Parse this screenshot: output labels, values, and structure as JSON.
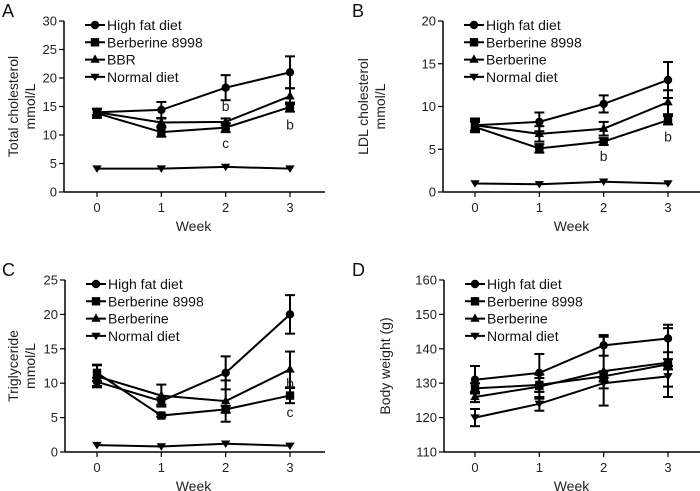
{
  "chart_data": [
    {
      "panel_label": "A",
      "type": "line",
      "xlabel": "Week",
      "ylabel": [
        "Total cholesterol",
        "mmol/L"
      ],
      "x": [
        0,
        1,
        2,
        3
      ],
      "xlim": [
        -0.5,
        3.5
      ],
      "ylim": [
        0,
        30
      ],
      "yticks": [
        0,
        5,
        10,
        15,
        20,
        25,
        30
      ],
      "legend": "top-left",
      "series": [
        {
          "name": "High fat diet",
          "marker": "circle",
          "values": [
            14,
            14.4,
            18.3,
            21
          ],
          "error": [
            0.6,
            1.4,
            2.2,
            2.8
          ]
        },
        {
          "name": "Berberine 8998",
          "marker": "square",
          "values": [
            13.8,
            10.5,
            11.3,
            14.9
          ],
          "error": [
            0.8,
            0.8,
            0.8,
            0.8
          ]
        },
        {
          "name": "BBR",
          "marker": "triangle-up",
          "values": [
            14,
            12.2,
            12.3,
            16.8
          ],
          "error": [
            0.5,
            0.7,
            0.6,
            1.4
          ]
        },
        {
          "name": "Normal diet",
          "marker": "triangle-down",
          "values": [
            4.1,
            4.1,
            4.4,
            4.1
          ],
          "error": [
            0,
            0,
            0,
            0
          ]
        }
      ],
      "annotations": [
        {
          "text": "b",
          "x": 2,
          "y": 15.1
        },
        {
          "text": "c",
          "x": 2,
          "y": 8.6
        },
        {
          "text": "b",
          "x": 3,
          "y": 11.8
        }
      ]
    },
    {
      "panel_label": "B",
      "type": "line",
      "xlabel": "Week",
      "ylabel": [
        "LDL cholesterol",
        "mmol/L"
      ],
      "x": [
        0,
        1,
        2,
        3
      ],
      "xlim": [
        -0.5,
        3.5
      ],
      "ylim": [
        0,
        20
      ],
      "yticks": [
        0,
        5,
        10,
        15,
        20
      ],
      "legend": "top-left",
      "series": [
        {
          "name": "High fat diet",
          "marker": "circle",
          "values": [
            7.8,
            8.2,
            10.3,
            13.1
          ],
          "error": [
            0.8,
            1.1,
            1.0,
            2.1
          ]
        },
        {
          "name": "Berberine 8998",
          "marker": "square",
          "values": [
            7.6,
            5.1,
            5.9,
            8.4
          ],
          "error": [
            0.6,
            0.5,
            0.4,
            0.5
          ]
        },
        {
          "name": "Berberine",
          "marker": "triangle-up",
          "values": [
            7.8,
            6.8,
            7.4,
            10.5
          ],
          "error": [
            0.6,
            0.9,
            0.8,
            1.4
          ]
        },
        {
          "name": "Normal diet",
          "marker": "triangle-down",
          "values": [
            1.0,
            0.9,
            1.2,
            1.0
          ],
          "error": [
            0,
            0,
            0,
            0
          ]
        }
      ],
      "annotations": [
        {
          "text": "b",
          "x": 2,
          "y": 4.2
        },
        {
          "text": "b",
          "x": 3,
          "y": 6.5
        }
      ]
    },
    {
      "panel_label": "C",
      "type": "line",
      "xlabel": "Week",
      "ylabel": [
        "Triglyceride",
        "mmol/L"
      ],
      "x": [
        0,
        1,
        2,
        3
      ],
      "xlim": [
        -0.5,
        3.5
      ],
      "ylim": [
        0,
        25
      ],
      "yticks": [
        0,
        5,
        10,
        15,
        20,
        25
      ],
      "legend": "top-left",
      "series": [
        {
          "name": "High fat diet",
          "marker": "circle",
          "values": [
            10.2,
            7.4,
            11.5,
            20
          ],
          "error": [
            0.6,
            0.5,
            2.4,
            2.8
          ]
        },
        {
          "name": "Berberine 8998",
          "marker": "square",
          "values": [
            11.5,
            5.3,
            6.2,
            8.2
          ],
          "error": [
            1.2,
            0.2,
            0.5,
            1.1
          ]
        },
        {
          "name": "Berberine",
          "marker": "triangle-up",
          "values": [
            11.0,
            8.2,
            7.4,
            12
          ],
          "error": [
            1.6,
            1.6,
            3.0,
            2.6
          ]
        },
        {
          "name": "Normal diet",
          "marker": "triangle-down",
          "values": [
            1.0,
            0.8,
            1.2,
            0.9
          ],
          "error": [
            0,
            0,
            0,
            0
          ]
        }
      ],
      "annotations": [
        {
          "text": "b",
          "x": 3,
          "y": 10
        },
        {
          "text": "c",
          "x": 3,
          "y": 5.8
        }
      ]
    },
    {
      "panel_label": "D",
      "type": "line",
      "xlabel": "Week",
      "ylabel": [
        "Body weight (g)"
      ],
      "x": [
        0,
        1,
        2,
        3
      ],
      "xlim": [
        -0.5,
        3.5
      ],
      "ylim": [
        110,
        160
      ],
      "yticks": [
        110,
        120,
        130,
        140,
        150,
        160
      ],
      "legend": "top-left",
      "series": [
        {
          "name": "High fat diet",
          "marker": "circle",
          "values": [
            131,
            133,
            141,
            143
          ],
          "error": [
            4,
            5.5,
            3,
            4
          ]
        },
        {
          "name": "Berberine 8998",
          "marker": "square",
          "values": [
            128.5,
            129.5,
            132,
            135.5
          ],
          "error": [
            1.5,
            2,
            1.5,
            1.5
          ]
        },
        {
          "name": "Berberine",
          "marker": "triangle-up",
          "values": [
            126,
            129,
            133.5,
            136
          ],
          "error": [
            1.5,
            3.5,
            10,
            10
          ]
        },
        {
          "name": "Normal diet",
          "marker": "triangle-down",
          "values": [
            120,
            124,
            130,
            132
          ],
          "error": [
            2.5,
            2,
            1.5,
            3
          ]
        }
      ],
      "annotations": []
    }
  ]
}
